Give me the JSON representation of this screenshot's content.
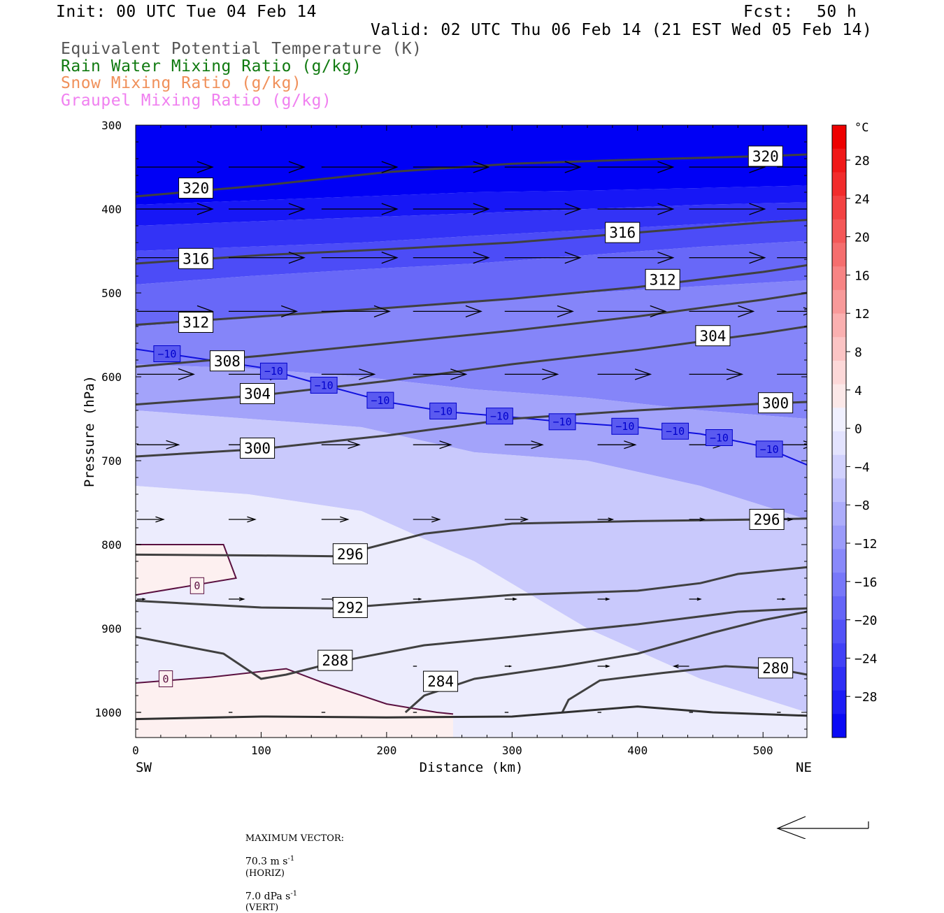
{
  "header": {
    "init": "Init: 00 UTC Tue 04 Feb 14",
    "fcst_label": "Fcst:",
    "fcst_value": "50 h",
    "valid": "Valid: 02 UTC Thu 06 Feb 14 (21 EST Wed 05 Feb 14)"
  },
  "legend": [
    {
      "text": "Equivalent Potential Temperature (K)",
      "color": "#555555"
    },
    {
      "text": "Rain Water Mixing Ratio (g/kg)",
      "color": "#107a10"
    },
    {
      "text": "Snow Mixing Ratio (g/kg)",
      "color": "#f0905a"
    },
    {
      "text": "Graupel Mixing Ratio (g/kg)",
      "color": "#f080f0"
    }
  ],
  "footer": {
    "max_vector_label": "MAXIMUM VECTOR:",
    "horiz_value": "70.3 m s",
    "horiz_unit": "(HORIZ)",
    "vert_value": "7.0 dPa s",
    "vert_unit": "(VERT)",
    "exponent": "-1"
  },
  "chart_data": {
    "type": "heatmap",
    "title": "",
    "xlabel": "Distance (km)",
    "ylabel": "Pressure (hPa)",
    "xlim": [
      0,
      535
    ],
    "ylim": [
      1030,
      300
    ],
    "x_ticks": [
      0,
      100,
      200,
      300,
      400,
      500
    ],
    "y_ticks": [
      300,
      400,
      500,
      600,
      700,
      800,
      900,
      1000
    ],
    "left_end_label": "SW",
    "right_end_label": "NE",
    "colorbar": {
      "unit": "°C",
      "labels": [
        "28",
        "24",
        "20",
        "16",
        "12",
        "8",
        "4",
        "0",
        "−4",
        "−8",
        "−12",
        "−16",
        "−20",
        "−24",
        "−28"
      ],
      "colors": [
        "#0a0af5",
        "#1d1df6",
        "#2f2ff6",
        "#4141f7",
        "#5353f8",
        "#6565f8",
        "#7777f9",
        "#8989fa",
        "#9b9bfa",
        "#adadfb",
        "#bfbffc",
        "#d1d1fd",
        "#e3e3fe",
        "#f0f0fe",
        "#fbe8e8",
        "#fcd8d8",
        "#fbc4c4",
        "#fab0b0",
        "#f89a9a",
        "#f78484",
        "#f56e6e",
        "#f45858",
        "#f34242",
        "#f22c2c",
        "#f01818",
        "#ee0000"
      ]
    },
    "temperature_shading": {
      "unit": "°C",
      "bands": [
        {
          "temp": -32,
          "top": [
            300,
            300,
            300,
            300,
            300,
            300,
            300
          ],
          "bottom": [
            395,
            390,
            385,
            380,
            378,
            375,
            372
          ]
        },
        {
          "temp": -28,
          "top": [
            395,
            390,
            385,
            380,
            378,
            375,
            372
          ],
          "bottom": [
            420,
            415,
            410,
            405,
            400,
            395,
            392
          ]
        },
        {
          "temp": -24,
          "top": [
            420,
            415,
            410,
            405,
            400,
            395,
            392
          ],
          "bottom": [
            450,
            445,
            440,
            432,
            425,
            418,
            412
          ]
        },
        {
          "temp": -20,
          "top": [
            450,
            445,
            440,
            432,
            425,
            418,
            412
          ],
          "bottom": [
            490,
            480,
            472,
            465,
            455,
            445,
            438
          ]
        },
        {
          "temp": -16,
          "top": [
            490,
            480,
            472,
            465,
            455,
            445,
            438
          ],
          "bottom": [
            540,
            530,
            520,
            510,
            500,
            492,
            485
          ]
        },
        {
          "temp": -12,
          "top": [
            540,
            530,
            520,
            510,
            500,
            492,
            485
          ],
          "bottom": [
            585,
            590,
            600,
            615,
            625,
            640,
            650
          ]
        },
        {
          "temp": -8,
          "top": [
            585,
            590,
            600,
            615,
            625,
            640,
            650
          ],
          "bottom": [
            640,
            650,
            660,
            690,
            700,
            730,
            770
          ]
        },
        {
          "temp": -4,
          "top": [
            640,
            650,
            660,
            690,
            700,
            730,
            770
          ],
          "bottom": [
            730,
            740,
            760,
            820,
            900,
            960,
            1000
          ]
        },
        {
          "temp": 0,
          "top": [
            730,
            740,
            760,
            820,
            900,
            960,
            1000
          ],
          "bottom": [
            1030,
            1030,
            1030,
            1030,
            1030,
            1030,
            1030
          ]
        }
      ],
      "band_x": [
        0,
        90,
        180,
        270,
        360,
        450,
        535
      ]
    },
    "theta_e_contours": [
      {
        "label": "320",
        "color": "#404040",
        "points": [
          [
            0,
            385
          ],
          [
            100,
            372
          ],
          [
            200,
            356
          ],
          [
            300,
            346
          ],
          [
            400,
            341
          ],
          [
            500,
            337
          ],
          [
            535,
            335
          ]
        ]
      },
      {
        "label": "316",
        "color": "#404040",
        "points": [
          [
            0,
            465
          ],
          [
            100,
            455
          ],
          [
            200,
            448
          ],
          [
            300,
            440
          ],
          [
            400,
            428
          ],
          [
            500,
            416
          ],
          [
            535,
            413
          ]
        ]
      },
      {
        "label": "312",
        "color": "#404040",
        "points": [
          [
            0,
            538
          ],
          [
            100,
            528
          ],
          [
            200,
            518
          ],
          [
            300,
            507
          ],
          [
            400,
            493
          ],
          [
            500,
            475
          ],
          [
            535,
            467
          ]
        ]
      },
      {
        "label": "308",
        "color": "#404040",
        "points": [
          [
            0,
            588
          ],
          [
            100,
            575
          ],
          [
            200,
            560
          ],
          [
            300,
            545
          ],
          [
            400,
            528
          ],
          [
            500,
            508
          ],
          [
            535,
            500
          ]
        ]
      },
      {
        "label": "304",
        "color": "#404040",
        "points": [
          [
            0,
            633
          ],
          [
            100,
            622
          ],
          [
            200,
            605
          ],
          [
            300,
            585
          ],
          [
            400,
            568
          ],
          [
            500,
            548
          ],
          [
            535,
            540
          ]
        ]
      },
      {
        "label": "300",
        "color": "#404040",
        "points": [
          [
            0,
            695
          ],
          [
            100,
            686
          ],
          [
            200,
            670
          ],
          [
            300,
            650
          ],
          [
            400,
            640
          ],
          [
            500,
            632
          ],
          [
            535,
            630
          ]
        ]
      },
      {
        "label": "296",
        "color": "#404040",
        "points": [
          [
            0,
            812
          ],
          [
            100,
            813
          ],
          [
            160,
            814
          ],
          [
            230,
            787
          ],
          [
            300,
            775
          ],
          [
            400,
            772
          ],
          [
            500,
            770
          ],
          [
            535,
            769
          ]
        ]
      },
      {
        "label": "292",
        "color": "#404040",
        "points": [
          [
            0,
            867
          ],
          [
            100,
            875
          ],
          [
            160,
            876
          ],
          [
            300,
            860
          ],
          [
            400,
            855
          ],
          [
            450,
            846
          ],
          [
            480,
            835
          ],
          [
            535,
            827
          ]
        ]
      },
      {
        "label": "288",
        "color": "#404040",
        "points": [
          [
            0,
            910
          ],
          [
            70,
            930
          ],
          [
            100,
            960
          ],
          [
            120,
            955
          ],
          [
            160,
            940
          ],
          [
            230,
            920
          ],
          [
            300,
            910
          ],
          [
            400,
            895
          ],
          [
            480,
            880
          ],
          [
            535,
            876
          ]
        ]
      },
      {
        "label": "284",
        "color": "#404040",
        "points": [
          [
            215,
            1000
          ],
          [
            230,
            980
          ],
          [
            270,
            960
          ],
          [
            340,
            945
          ],
          [
            400,
            930
          ],
          [
            460,
            905
          ],
          [
            500,
            890
          ],
          [
            535,
            880
          ]
        ]
      },
      {
        "label": "280",
        "color": "#404040",
        "points": [
          [
            340,
            1000
          ],
          [
            345,
            985
          ],
          [
            370,
            962
          ],
          [
            420,
            953
          ],
          [
            470,
            945
          ],
          [
            510,
            948
          ],
          [
            535,
            955
          ]
        ]
      },
      {
        "label": "",
        "color": "#303030",
        "points": [
          [
            0,
            1008
          ],
          [
            100,
            1005
          ],
          [
            200,
            1006
          ],
          [
            300,
            1005
          ],
          [
            400,
            993
          ],
          [
            460,
            1000
          ],
          [
            535,
            1004
          ]
        ]
      }
    ],
    "isotherm_contours": [
      {
        "label": "−10",
        "color": "#1010dd",
        "points": [
          [
            0,
            567
          ],
          [
            50,
            578
          ],
          [
            100,
            589
          ],
          [
            150,
            610
          ],
          [
            200,
            630
          ],
          [
            250,
            642
          ],
          [
            300,
            648
          ],
          [
            350,
            655
          ],
          [
            400,
            660
          ],
          [
            450,
            668
          ],
          [
            500,
            683
          ],
          [
            535,
            705
          ]
        ]
      },
      {
        "label": "0",
        "color": "#5a1040",
        "points": [
          [
            0,
            800
          ],
          [
            70,
            800
          ],
          [
            80,
            840
          ],
          [
            0,
            860
          ]
        ]
      },
      {
        "label": "0",
        "color": "#5a1040",
        "points": [
          [
            0,
            965
          ],
          [
            60,
            958
          ],
          [
            120,
            948
          ],
          [
            150,
            965
          ],
          [
            200,
            990
          ],
          [
            240,
            1000
          ],
          [
            253,
            1002
          ]
        ]
      }
    ],
    "wind_vectors": [
      {
        "p": 350,
        "rows": [
          [
            0,
            1
          ],
          [
            73,
            1
          ],
          [
            147,
            1
          ],
          [
            220,
            1
          ],
          [
            293,
            1
          ],
          [
            367,
            1
          ],
          [
            440,
            1
          ],
          [
            510,
            1
          ]
        ]
      },
      {
        "p": 400,
        "rows": [
          [
            0,
            1
          ],
          [
            73,
            1
          ],
          [
            147,
            1
          ],
          [
            220,
            1
          ],
          [
            293,
            1
          ],
          [
            367,
            1
          ],
          [
            440,
            1
          ],
          [
            510,
            1
          ]
        ]
      },
      {
        "p": 458,
        "rows": [
          [
            0,
            1
          ],
          [
            73,
            1
          ],
          [
            147,
            1
          ],
          [
            220,
            1
          ],
          [
            293,
            1
          ],
          [
            367,
            1
          ],
          [
            440,
            1
          ],
          [
            510,
            1
          ]
        ]
      },
      {
        "p": 522,
        "rows": [
          [
            0,
            1
          ],
          [
            73,
            0.9
          ],
          [
            147,
            0.9
          ],
          [
            220,
            0.9
          ],
          [
            293,
            0.9
          ],
          [
            367,
            0.9
          ],
          [
            440,
            0.85
          ],
          [
            510,
            0.5
          ]
        ]
      },
      {
        "p": 597,
        "rows": [
          [
            0,
            0.75
          ],
          [
            73,
            0.75
          ],
          [
            147,
            0.7
          ],
          [
            220,
            0.7
          ],
          [
            293,
            0.7
          ],
          [
            367,
            0.7
          ],
          [
            440,
            0.7
          ],
          [
            510,
            0.6
          ]
        ]
      },
      {
        "p": 681,
        "rows": [
          [
            0,
            0.55
          ],
          [
            73,
            0.5
          ],
          [
            147,
            0.5
          ],
          [
            220,
            0.5
          ],
          [
            293,
            0.5
          ],
          [
            367,
            0.5
          ],
          [
            440,
            0.45
          ],
          [
            510,
            0.5
          ]
        ]
      },
      {
        "p": 770,
        "rows": [
          [
            0,
            0.35
          ],
          [
            73,
            0.35
          ],
          [
            147,
            0.35
          ],
          [
            220,
            0.35
          ],
          [
            293,
            0.3
          ],
          [
            367,
            0.2
          ],
          [
            440,
            0.2
          ],
          [
            510,
            0.2
          ]
        ]
      },
      {
        "p": 865,
        "rows": [
          [
            0,
            0.1
          ],
          [
            73,
            0.2
          ],
          [
            147,
            0.2
          ],
          [
            220,
            0.1
          ],
          [
            293,
            0.15
          ],
          [
            367,
            0.15
          ],
          [
            440,
            0.15
          ],
          [
            510,
            0.1
          ]
        ]
      },
      {
        "p": 945,
        "rows": [
          [
            220,
            0.05
          ],
          [
            293,
            0.08
          ],
          [
            367,
            0.15
          ],
          [
            440,
            -0.2
          ],
          [
            510,
            -0.05
          ]
        ]
      },
      {
        "p": 1000,
        "rows": [
          [
            0,
            0.05
          ],
          [
            73,
            0.05
          ],
          [
            147,
            0.05
          ],
          [
            220,
            0.05
          ],
          [
            293,
            0.05
          ],
          [
            367,
            0.05
          ],
          [
            440,
            0.05
          ],
          [
            510,
            0.05
          ]
        ]
      }
    ],
    "grid": false,
    "legend_position": "top-left"
  }
}
